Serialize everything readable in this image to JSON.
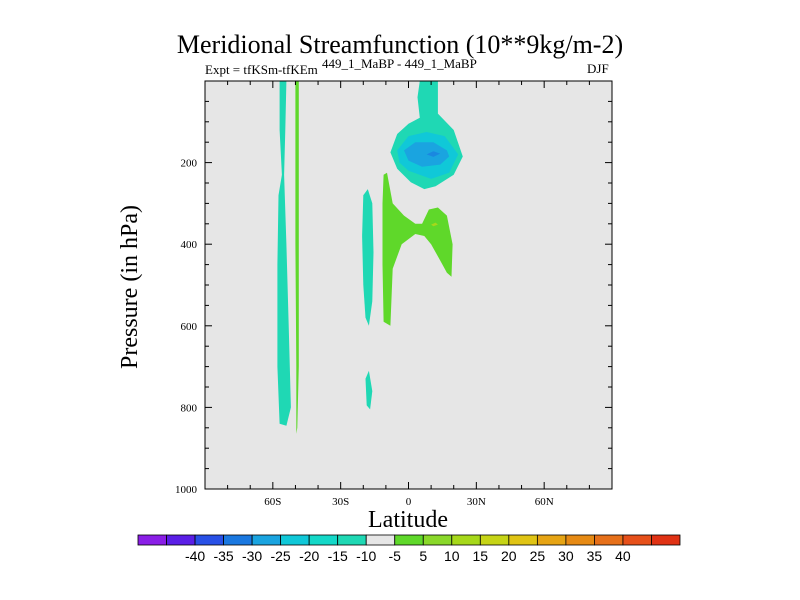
{
  "title": "Meridional Streamfunction (10**9kg/m-2)",
  "expt_label": "Expt = tfKSm-tfKEm",
  "diff_label": "449_1_MaBP - 449_1_MaBP",
  "season_label": "DJF",
  "colors": {
    "background": "#ffffff",
    "plot_background": "#e6e6e6",
    "neg_light": "#1fd8b4",
    "neg_mid": "#10c8d8",
    "neg_strong": "#1aa4e0",
    "neg_stronger": "#1a88e0",
    "pos_light": "#5fd82a",
    "pos_mid": "#a6d81a"
  },
  "chart_data": {
    "type": "contour",
    "title": "Meridional Streamfunction (10**9kg/m-2)",
    "xlabel": "Latitude",
    "ylabel": "Pressure (in hPa)",
    "xlim": [
      -90,
      90
    ],
    "ylim": [
      1000,
      0
    ],
    "x_ticks": [
      {
        "value": -60,
        "label": "60S"
      },
      {
        "value": -30,
        "label": "30S"
      },
      {
        "value": 0,
        "label": "0"
      },
      {
        "value": 30,
        "label": "30N"
      },
      {
        "value": 60,
        "label": "60N"
      }
    ],
    "y_ticks": [
      {
        "value": 200,
        "label": "200"
      },
      {
        "value": 400,
        "label": "400"
      },
      {
        "value": 600,
        "label": "600"
      },
      {
        "value": 800,
        "label": "800"
      },
      {
        "value": 1000,
        "label": "1000"
      }
    ],
    "regions": [
      {
        "name": "neg-band-60s",
        "level": -10,
        "colorKey": "neg_light",
        "points": [
          [
            -57,
            0
          ],
          [
            -54,
            0
          ],
          [
            -54.5,
            120
          ],
          [
            -55,
            230
          ],
          [
            -54,
            400
          ],
          [
            -53,
            600
          ],
          [
            -52,
            800
          ],
          [
            -54,
            845
          ],
          [
            -57,
            840
          ],
          [
            -58,
            700
          ],
          [
            -58,
            450
          ],
          [
            -57.5,
            280
          ],
          [
            -56,
            230
          ],
          [
            -57,
            120
          ]
        ]
      },
      {
        "name": "pos-band-50s",
        "level": 5,
        "colorKey": "pos_light",
        "points": [
          [
            -50,
            0
          ],
          [
            -48.5,
            0
          ],
          [
            -48.5,
            300
          ],
          [
            -48.5,
            700
          ],
          [
            -49.2,
            850
          ],
          [
            -49.6,
            865
          ],
          [
            -49.6,
            700
          ],
          [
            -50,
            400
          ],
          [
            -50,
            150
          ]
        ]
      },
      {
        "name": "neg-band-20s",
        "level": -10,
        "colorKey": "neg_light",
        "points": [
          [
            -20,
            280
          ],
          [
            -18,
            265
          ],
          [
            -16,
            300
          ],
          [
            -15.5,
            420
          ],
          [
            -16,
            540
          ],
          [
            -17.5,
            600
          ],
          [
            -19,
            580
          ],
          [
            -20,
            500
          ],
          [
            -20.5,
            380
          ]
        ]
      },
      {
        "name": "neg-patch-18s",
        "level": -10,
        "colorKey": "neg_light",
        "points": [
          [
            -19,
            730
          ],
          [
            -17.5,
            710
          ],
          [
            -16,
            760
          ],
          [
            -17,
            805
          ],
          [
            -18.5,
            795
          ]
        ]
      },
      {
        "name": "pos-cell-lower",
        "level": 5,
        "colorKey": "pos_light",
        "points": [
          [
            -11,
            230
          ],
          [
            -9.5,
            225
          ],
          [
            -7,
            300
          ],
          [
            -2,
            330
          ],
          [
            3,
            350
          ],
          [
            6,
            350
          ],
          [
            9,
            315
          ],
          [
            13,
            310
          ],
          [
            17,
            330
          ],
          [
            19.5,
            400
          ],
          [
            19,
            480
          ],
          [
            17,
            470
          ],
          [
            14,
            440
          ],
          [
            10,
            400
          ],
          [
            7,
            380
          ],
          [
            3,
            375
          ],
          [
            -3,
            400
          ],
          [
            -7,
            460
          ],
          [
            -8,
            600
          ],
          [
            -11,
            590
          ],
          [
            -11.5,
            450
          ],
          [
            -11.5,
            300
          ]
        ]
      },
      {
        "name": "pos-dot",
        "level": 10,
        "colorKey": "pos_mid",
        "points": [
          [
            10,
            352
          ],
          [
            12,
            347
          ],
          [
            13,
            352
          ],
          [
            11,
            356
          ]
        ]
      },
      {
        "name": "neg-cell-upper",
        "level": -10,
        "colorKey": "neg_light",
        "points": [
          [
            5,
            0
          ],
          [
            13,
            0
          ],
          [
            13,
            80
          ],
          [
            20,
            120
          ],
          [
            24,
            185
          ],
          [
            20,
            230
          ],
          [
            12,
            258
          ],
          [
            7,
            265
          ],
          [
            1,
            248
          ],
          [
            -5,
            215
          ],
          [
            -8,
            175
          ],
          [
            -5,
            130
          ],
          [
            0,
            105
          ],
          [
            5,
            90
          ],
          [
            4,
            40
          ]
        ]
      },
      {
        "name": "neg-cell-upper-mid",
        "level": -15,
        "colorKey": "neg_mid",
        "points": [
          [
            -5,
            170
          ],
          [
            0,
            135
          ],
          [
            8,
            125
          ],
          [
            16,
            135
          ],
          [
            22,
            180
          ],
          [
            18,
            225
          ],
          [
            10,
            240
          ],
          [
            0,
            220
          ],
          [
            -4,
            200
          ]
        ]
      },
      {
        "name": "neg-cell-upper-strong",
        "level": -20,
        "colorKey": "neg_strong",
        "points": [
          [
            -2,
            170
          ],
          [
            3,
            150
          ],
          [
            11,
            150
          ],
          [
            17,
            170
          ],
          [
            18,
            185
          ],
          [
            14,
            205
          ],
          [
            6,
            210
          ],
          [
            0,
            195
          ]
        ]
      },
      {
        "name": "neg-cell-upper-core",
        "level": -25,
        "colorKey": "neg_stronger",
        "points": [
          [
            8,
            180
          ],
          [
            11,
            172
          ],
          [
            14,
            178
          ],
          [
            11,
            186
          ]
        ]
      }
    ]
  },
  "colorbar": {
    "colors": [
      "#8a1ee6",
      "#5a1ee6",
      "#2850e6",
      "#1a78e0",
      "#1aa4e0",
      "#10c8d8",
      "#14d8c8",
      "#1fd8b4",
      "#e6e6e6",
      "#5fd82a",
      "#8ad82a",
      "#a6d81a",
      "#c6d416",
      "#e0c414",
      "#e6a414",
      "#e68a14",
      "#e6701a",
      "#e6501a",
      "#e03214"
    ],
    "labels": [
      "-40",
      "-35",
      "-30",
      "-25",
      "-20",
      "-15",
      "-10",
      "-5",
      "5",
      "10",
      "15",
      "20",
      "25",
      "30",
      "35",
      "40"
    ]
  }
}
